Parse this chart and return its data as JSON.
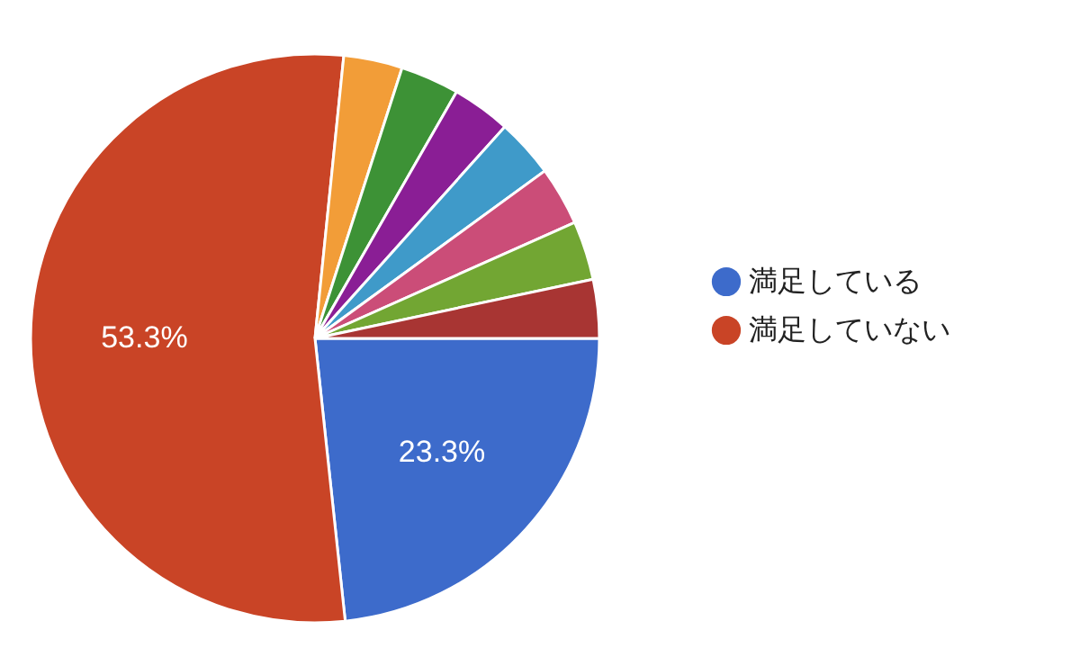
{
  "chart_data": {
    "type": "pie",
    "categories": [
      "満足している",
      "満足していない",
      null,
      null,
      null,
      null,
      null,
      null,
      null
    ],
    "values": [
      23.3,
      53.3,
      3.34,
      3.34,
      3.34,
      3.34,
      3.34,
      3.34,
      3.34
    ],
    "colors": [
      "#3d6bcb",
      "#c94426",
      "#f29d38",
      "#3d9236",
      "#8a1e95",
      "#3f9ac9",
      "#cb4d78",
      "#72a633",
      "#a83533"
    ],
    "value_labels": [
      "23.3%",
      "53.3%",
      null,
      null,
      null,
      null,
      null,
      null,
      null
    ],
    "legend": "right"
  }
}
